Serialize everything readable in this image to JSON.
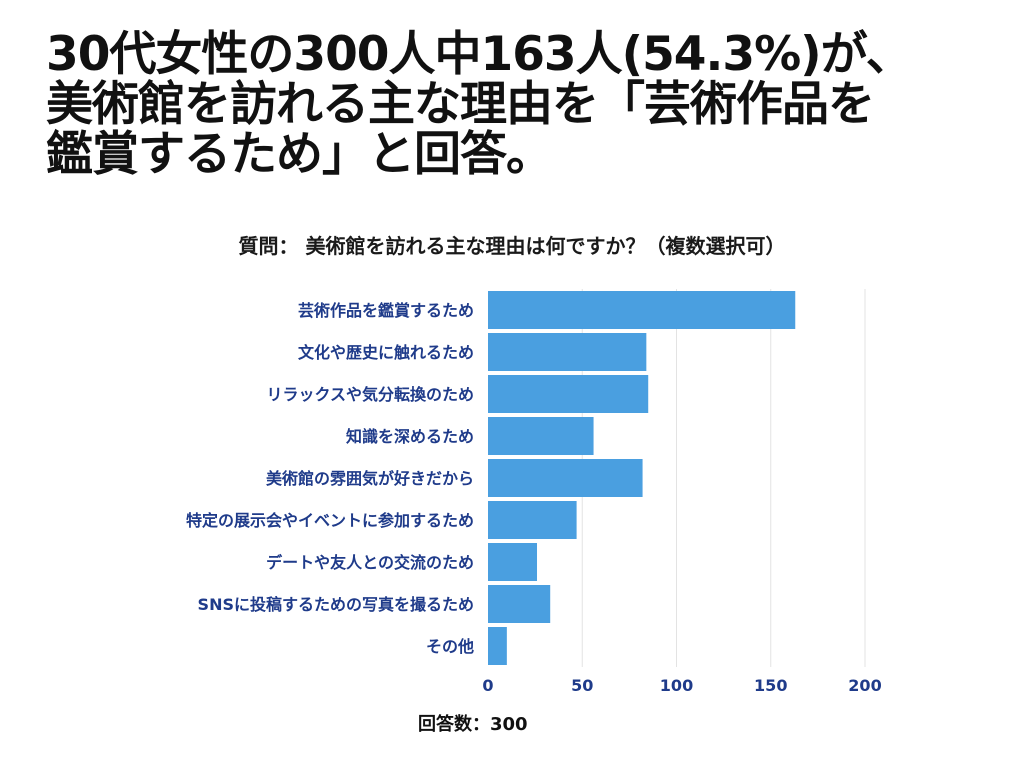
{
  "headline": "30代女性の300人中163人(54.3%)が、\n美術館を訪れる主な理由を「芸術作品を\n鑑賞するため」と回答。",
  "chart_data": {
    "type": "bar",
    "orientation": "horizontal",
    "title": "質問： 美術館を訪れる主な理由は何ですか？（複数選択可）",
    "categories": [
      "芸術作品を鑑賞するため",
      "文化や歴史に触れるため",
      "リラックスや気分転換のため",
      "知識を深めるため",
      "美術館の雰囲気が好きだから",
      "特定の展示会やイベントに参加するため",
      "デートや友人との交流のため",
      "SNSに投稿するための写真を撮るため",
      "その他"
    ],
    "values": [
      163,
      84,
      85,
      56,
      82,
      47,
      26,
      33,
      10
    ],
    "xlim": [
      0,
      200
    ],
    "xticks": [
      0,
      50,
      100,
      150,
      200
    ],
    "grid": true,
    "bar_color": "#4a9fe0",
    "label_color": "#1f3b8a",
    "note": "回答数：300"
  }
}
